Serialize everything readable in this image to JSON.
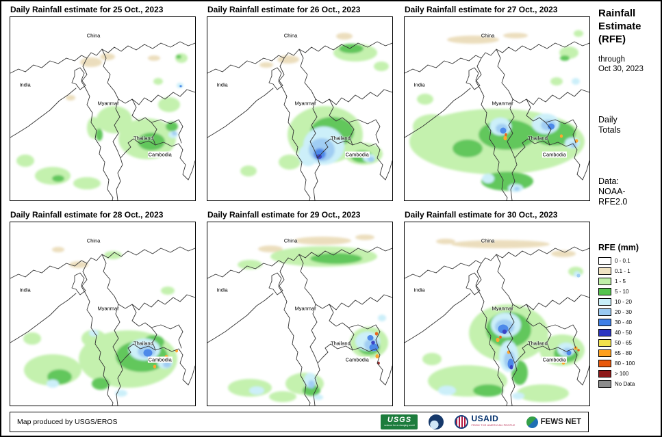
{
  "panels": [
    {
      "title": "Daily Rainfall estimate for 25 Oct., 2023"
    },
    {
      "title": "Daily Rainfall estimate for 26 Oct., 2023"
    },
    {
      "title": "Daily Rainfall estimate for 27 Oct., 2023"
    },
    {
      "title": "Daily Rainfall estimate for 28 Oct., 2023"
    },
    {
      "title": "Daily Rainfall estimate for 29 Oct., 2023"
    },
    {
      "title": "Daily Rainfall estimate for 30 Oct., 2023"
    }
  ],
  "map_labels": {
    "china": "China",
    "india": "India",
    "myanmar": "Myanmar",
    "thailand": "Thailand",
    "cambodia": "Cambodia"
  },
  "sidebar": {
    "title_line1": "Rainfall",
    "title_line2": "Estimate",
    "title_line3": "(RFE)",
    "through": "through",
    "through_date": "Oct 30, 2023",
    "period_line1": "Daily",
    "period_line2": "Totals",
    "data_line1": "Data:",
    "data_line2": "NOAA-",
    "data_line3": "RFE2.0"
  },
  "legend": {
    "title": "RFE (mm)",
    "items": [
      {
        "label": "0 - 0.1",
        "color": "#FFFFFF"
      },
      {
        "label": "0.1 - 1",
        "color": "#F0E3C2"
      },
      {
        "label": "1 - 5",
        "color": "#BFF0A8"
      },
      {
        "label": "5 - 10",
        "color": "#55C34F"
      },
      {
        "label": "10 - 20",
        "color": "#C8EEF9"
      },
      {
        "label": "20 - 30",
        "color": "#99C9F2"
      },
      {
        "label": "30 - 40",
        "color": "#3E7FE8"
      },
      {
        "label": "40 - 50",
        "color": "#2B35C0"
      },
      {
        "label": "50 - 65",
        "color": "#F2E14C"
      },
      {
        "label": "65 - 80",
        "color": "#FFA01E"
      },
      {
        "label": "80 - 100",
        "color": "#E8590C"
      },
      {
        "label": "> 100",
        "color": "#8E1A1A"
      },
      {
        "label": "No Data",
        "color": "#8C8C8C"
      }
    ]
  },
  "footer": {
    "credit": "Map produced by USGS/EROS",
    "logos": {
      "usgs": {
        "label": "USGS",
        "tagline": "science for a changing world"
      },
      "noaa": {
        "icon": "noaa-seal"
      },
      "usaid": {
        "label": "USAID",
        "tagline": "FROM THE AMERICAN PEOPLE"
      },
      "fewsnet": {
        "label": "FEWS NET"
      }
    }
  }
}
